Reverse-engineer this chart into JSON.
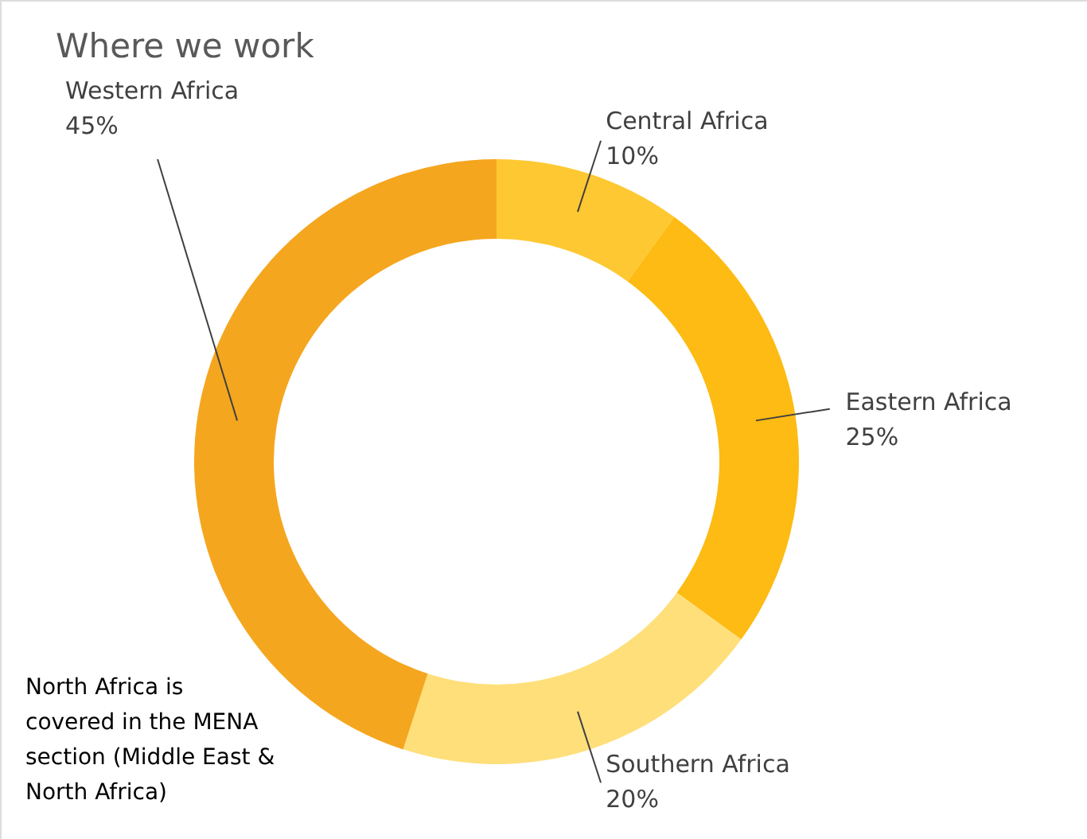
{
  "chart_data": {
    "type": "donut",
    "title": "Where we work",
    "categories": [
      "Central Africa",
      "Eastern Africa",
      "Southern Africa",
      "Western Africa"
    ],
    "values": [
      10,
      25,
      20,
      45
    ],
    "colors": [
      "#fec832",
      "#fdbb13",
      "#fedf7a",
      "#f5a61f"
    ],
    "value_labels": [
      "10%",
      "25%",
      "20%",
      "45%"
    ],
    "legend": false,
    "annotations": [
      "North Africa is covered in the MENA section (Middle East & North Africa)"
    ]
  }
}
